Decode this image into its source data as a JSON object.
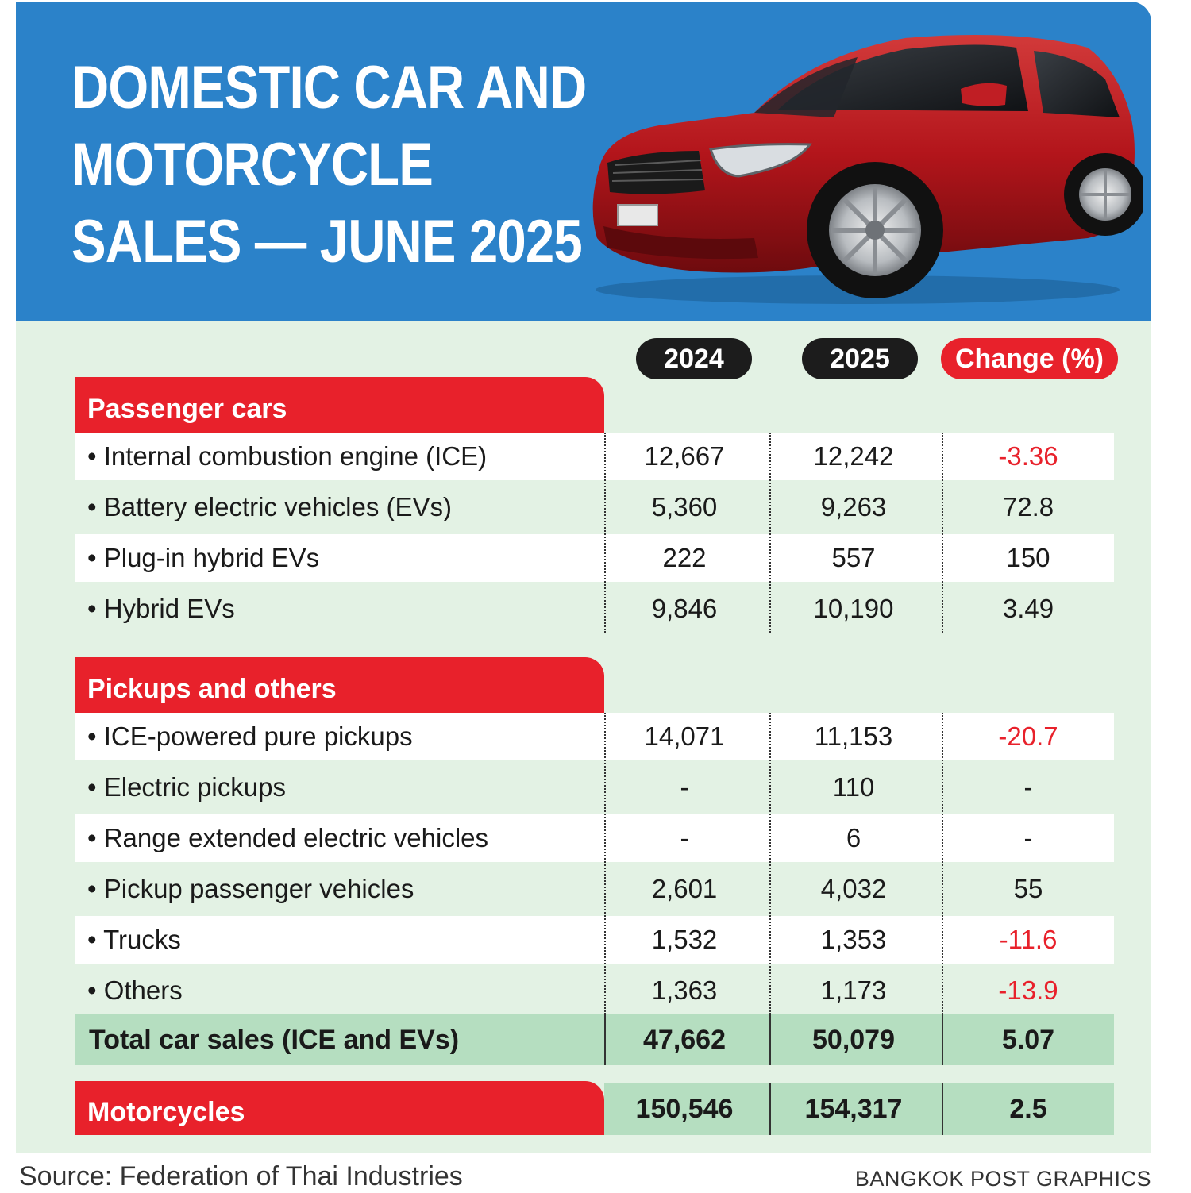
{
  "title_lines": [
    "DOMESTIC CAR AND",
    "MOTORCYCLE",
    "SALES — JUNE 2025"
  ],
  "columns": [
    "2024",
    "2025",
    "Change (%)"
  ],
  "sections": [
    {
      "name": "Passenger cars",
      "rows": [
        {
          "label": "• Internal combustion engine (ICE)",
          "v2024": "12,667",
          "v2025": "12,242",
          "change": "-3.36",
          "negative": true
        },
        {
          "label": "• Battery electric vehicles (EVs)",
          "v2024": "5,360",
          "v2025": "9,263",
          "change": "72.8",
          "negative": false
        },
        {
          "label": "• Plug-in hybrid EVs",
          "v2024": "222",
          "v2025": "557",
          "change": "150",
          "negative": false
        },
        {
          "label": "• Hybrid EVs",
          "v2024": "9,846",
          "v2025": "10,190",
          "change": "3.49",
          "negative": false
        }
      ]
    },
    {
      "name": "Pickups and others",
      "rows": [
        {
          "label": "• ICE-powered pure pickups",
          "v2024": "14,071",
          "v2025": "11,153",
          "change": "-20.7",
          "negative": true
        },
        {
          "label": "• Electric pickups",
          "v2024": "-",
          "v2025": "110",
          "change": "-",
          "negative": false
        },
        {
          "label": "• Range extended electric vehicles",
          "v2024": "-",
          "v2025": "6",
          "change": "-",
          "negative": false
        },
        {
          "label": "• Pickup passenger vehicles",
          "v2024": "2,601",
          "v2025": "4,032",
          "change": "55",
          "negative": false
        },
        {
          "label": "• Trucks",
          "v2024": "1,532",
          "v2025": "1,353",
          "change": "-11.6",
          "negative": true
        },
        {
          "label": "• Others",
          "v2024": "1,363",
          "v2025": "1,173",
          "change": "-13.9",
          "negative": true
        }
      ]
    }
  ],
  "total": {
    "label": "Total car sales (ICE and EVs)",
    "v2024": "47,662",
    "v2025": "50,079",
    "change": "5.07"
  },
  "motorcycles": {
    "label": "Motorcycles",
    "v2024": "150,546",
    "v2025": "154,317",
    "change": "2.5"
  },
  "source": "Source: Federation of Thai Industries",
  "credit": "BANGKOK POST GRAPHICS",
  "colors": {
    "header_blue": "#2b82c9",
    "accent_red": "#e8212b",
    "table_bg": "#e3f2e4",
    "total_green": "#b5dec0",
    "car_red": "#b3151b"
  },
  "chart_data": {
    "type": "table",
    "title": "DOMESTIC CAR AND MOTORCYCLE SALES — JUNE 2025",
    "columns": [
      "2024",
      "2025",
      "Change (%)"
    ],
    "rows": [
      {
        "group": "Passenger cars",
        "label": "Internal combustion engine (ICE)",
        "values": [
          12667,
          12242,
          -3.36
        ]
      },
      {
        "group": "Passenger cars",
        "label": "Battery electric vehicles (EVs)",
        "values": [
          5360,
          9263,
          72.8
        ]
      },
      {
        "group": "Passenger cars",
        "label": "Plug-in hybrid EVs",
        "values": [
          222,
          557,
          150
        ]
      },
      {
        "group": "Passenger cars",
        "label": "Hybrid EVs",
        "values": [
          9846,
          10190,
          3.49
        ]
      },
      {
        "group": "Pickups and others",
        "label": "ICE-powered pure pickups",
        "values": [
          14071,
          11153,
          -20.7
        ]
      },
      {
        "group": "Pickups and others",
        "label": "Electric pickups",
        "values": [
          null,
          110,
          null
        ]
      },
      {
        "group": "Pickups and others",
        "label": "Range extended electric vehicles",
        "values": [
          null,
          6,
          null
        ]
      },
      {
        "group": "Pickups and others",
        "label": "Pickup passenger vehicles",
        "values": [
          2601,
          4032,
          55
        ]
      },
      {
        "group": "Pickups and others",
        "label": "Trucks",
        "values": [
          1532,
          1353,
          -11.6
        ]
      },
      {
        "group": "Pickups and others",
        "label": "Others",
        "values": [
          1363,
          1173,
          -13.9
        ]
      },
      {
        "group": "",
        "label": "Total car sales (ICE and EVs)",
        "values": [
          47662,
          50079,
          5.07
        ]
      },
      {
        "group": "",
        "label": "Motorcycles",
        "values": [
          150546,
          154317,
          2.5
        ]
      }
    ]
  }
}
